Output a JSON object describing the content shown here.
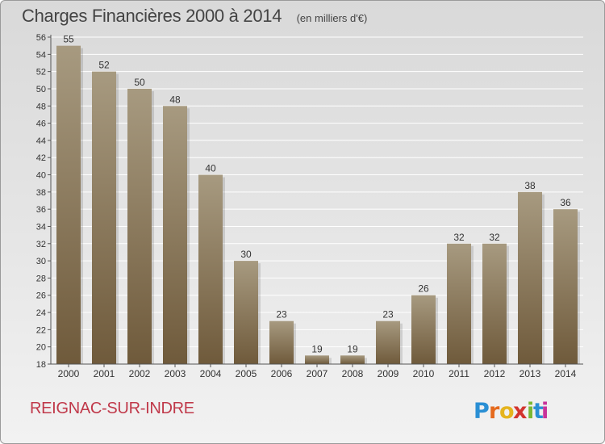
{
  "header": {
    "title": "Charges Financières 2000 à 2014",
    "subtitle": "(en milliers d'€)"
  },
  "footer": {
    "commune": "REIGNAC-SUR-INDRE",
    "logo_text": "Proxiti"
  },
  "colors": {
    "bar_top": "#a79a80",
    "bar_bottom": "#6f5a3b",
    "commune_text": "#c0394a",
    "logo": [
      "#2a8fd4",
      "#e56a1e",
      "#e5b41e",
      "#d2342e",
      "#7ab833",
      "#2a8fd4",
      "#c9339a"
    ]
  },
  "chart_data": {
    "type": "bar",
    "categories": [
      "2000",
      "2001",
      "2002",
      "2003",
      "2004",
      "2005",
      "2006",
      "2007",
      "2008",
      "2009",
      "2010",
      "2011",
      "2012",
      "2013",
      "2014"
    ],
    "values": [
      55,
      52,
      50,
      48,
      40,
      30,
      23,
      19,
      19,
      23,
      26,
      32,
      32,
      38,
      36
    ],
    "ylim": [
      18,
      56
    ],
    "yticks": [
      18,
      20,
      22,
      24,
      26,
      28,
      30,
      32,
      34,
      36,
      38,
      40,
      42,
      44,
      46,
      48,
      50,
      52,
      54,
      56
    ],
    "grid": true,
    "data_labels": true,
    "xlabel": "",
    "ylabel": ""
  }
}
